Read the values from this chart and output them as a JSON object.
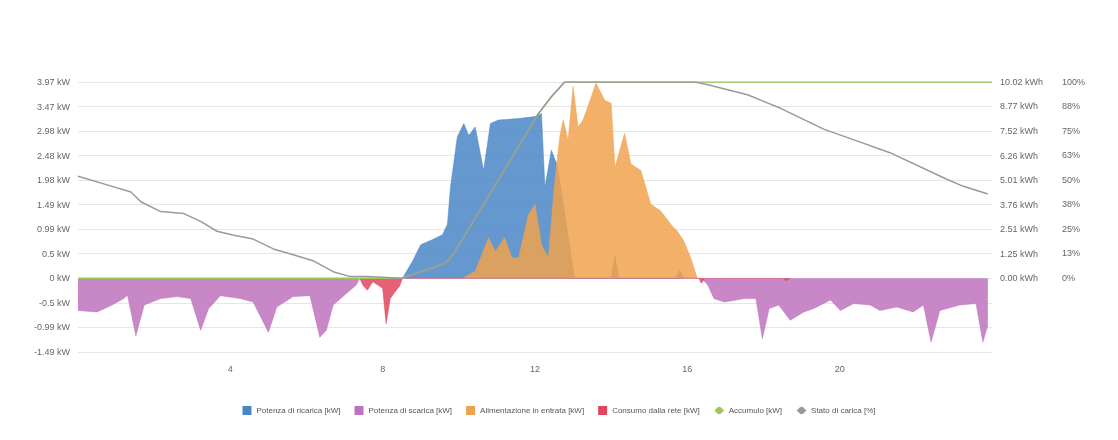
{
  "chart_data": {
    "type": "area",
    "xlim": [
      0,
      24
    ],
    "xticks": [
      4,
      8,
      12,
      16,
      20
    ],
    "ylim": [
      -1.49,
      3.97
    ],
    "yticks": [
      {
        "value": 3.97,
        "label": "3.97 kW"
      },
      {
        "value": 3.47,
        "label": "3.47 kW"
      },
      {
        "value": 2.98,
        "label": "2.98 kW"
      },
      {
        "value": 2.48,
        "label": "2.48 kW"
      },
      {
        "value": 1.98,
        "label": "1.98 kW"
      },
      {
        "value": 1.49,
        "label": "1.49 kW"
      },
      {
        "value": 0.99,
        "label": "0.99 kW"
      },
      {
        "value": 0.5,
        "label": "0.5 kW"
      },
      {
        "value": 0,
        "label": "0 kW"
      },
      {
        "value": -0.5,
        "label": "-0.5 kW"
      },
      {
        "value": -0.99,
        "label": "-0.99 kW"
      },
      {
        "value": -1.49,
        "label": "-1.49 kW"
      }
    ],
    "y2lim": [
      -3.76,
      10.02
    ],
    "y2ticks": [
      {
        "value": 10.02,
        "label": "10.02 kWh"
      },
      {
        "value": 8.77,
        "label": "8.77 kWh"
      },
      {
        "value": 7.52,
        "label": "7.52 kWh"
      },
      {
        "value": 6.26,
        "label": "6.26 kWh"
      },
      {
        "value": 5.01,
        "label": "5.01 kWh"
      },
      {
        "value": 3.76,
        "label": "3.76 kWh"
      },
      {
        "value": 2.51,
        "label": "2.51 kWh"
      },
      {
        "value": 1.25,
        "label": "1.25 kWh"
      },
      {
        "value": 0,
        "label": "0.00 kWh"
      }
    ],
    "y3lim": [
      -37.5,
      100
    ],
    "y3ticks": [
      {
        "value": 100,
        "label": "100%"
      },
      {
        "value": 88,
        "label": "88%"
      },
      {
        "value": 75,
        "label": "75%"
      },
      {
        "value": 63,
        "label": "63%"
      },
      {
        "value": 50,
        "label": "50%"
      },
      {
        "value": 38,
        "label": "38%"
      },
      {
        "value": 25,
        "label": "25%"
      },
      {
        "value": 13,
        "label": "13%"
      },
      {
        "value": 0,
        "label": "0%"
      }
    ],
    "grid": "y",
    "legend": "bottom",
    "series": [
      {
        "name": "Potenza di ricarica [kW]",
        "color": "#4a86c5",
        "x": [
          8.52,
          8.78,
          9.0,
          9.3,
          9.57,
          9.7,
          9.78,
          9.96,
          10.13,
          10.26,
          10.43,
          10.65,
          10.83,
          11.04,
          11.57,
          12.0,
          12.17,
          12.26,
          12.43,
          12.57,
          12.65,
          13.04,
          14.0,
          14.1,
          14.2,
          15.7,
          15.8,
          15.9
        ],
        "values": [
          0,
          0.34,
          0.68,
          0.78,
          0.88,
          1.09,
          1.84,
          2.86,
          3.13,
          2.89,
          3.06,
          2.18,
          3.13,
          3.2,
          3.23,
          3.27,
          3.33,
          1.84,
          2.59,
          2.31,
          1.97,
          0,
          0,
          0.45,
          0,
          0,
          0.17,
          0
        ]
      },
      {
        "name": "Potenza di scarica [kW]",
        "color": "#be72bd",
        "x": [
          0,
          0.5,
          0.87,
          1.2,
          1.3,
          1.52,
          1.74,
          2.17,
          2.6,
          2.96,
          3.22,
          3.43,
          3.74,
          4.26,
          4.6,
          5.0,
          5.22,
          5.65,
          6.09,
          6.35,
          6.52,
          6.7,
          7.04,
          7.3,
          7.4,
          16.37,
          16.54,
          16.7,
          16.97,
          17.5,
          17.8,
          17.97,
          18.15,
          18.4,
          18.7,
          19.06,
          19.32,
          19.76,
          20.02,
          20.37,
          20.8,
          21.06,
          21.5,
          21.93,
          22.2,
          22.4,
          22.63,
          23.15,
          23.58,
          23.76,
          23.89
        ],
        "values": [
          -0.65,
          -0.68,
          -0.55,
          -0.41,
          -0.34,
          -1.16,
          -0.54,
          -0.41,
          -0.37,
          -0.41,
          -1.05,
          -0.61,
          -0.35,
          -0.41,
          -0.48,
          -1.09,
          -0.58,
          -0.37,
          -0.35,
          -1.19,
          -1.05,
          -0.54,
          -0.31,
          -0.14,
          0,
          0,
          -0.14,
          -0.41,
          -0.48,
          -0.41,
          -0.41,
          -1.22,
          -0.61,
          -0.54,
          -0.85,
          -0.68,
          -0.61,
          -0.44,
          -0.65,
          -0.51,
          -0.54,
          -0.65,
          -0.58,
          -0.68,
          -0.54,
          -1.29,
          -0.65,
          -0.54,
          -0.51,
          -1.29,
          -0.95
        ]
      },
      {
        "name": "Alimentazione in entrata [kW]",
        "color": "#f0a24e",
        "x": [
          10.09,
          10.43,
          10.78,
          10.96,
          11.2,
          11.4,
          11.57,
          11.83,
          12.0,
          12.17,
          12.35,
          12.52,
          12.65,
          12.74,
          12.87,
          13.0,
          13.13,
          13.26,
          13.48,
          13.6,
          13.83,
          14.0,
          14.1,
          14.35,
          14.52,
          14.78,
          15.04,
          15.3,
          15.57,
          15.74,
          15.91,
          16.09,
          16.26
        ],
        "values": [
          0,
          0.14,
          0.82,
          0.54,
          0.82,
          0.41,
          0.41,
          1.29,
          1.5,
          0.68,
          0.41,
          1.97,
          2.86,
          3.2,
          2.79,
          3.88,
          3.06,
          3.2,
          3.67,
          3.95,
          3.6,
          3.54,
          2.24,
          2.93,
          2.31,
          2.18,
          1.5,
          1.36,
          1.09,
          0.95,
          0.75,
          0.41,
          0
        ]
      },
      {
        "name": "Consumo dalla rete [kW]",
        "color": "#e0465e",
        "x": [
          7.4,
          7.48,
          7.6,
          7.74,
          8.0,
          8.09,
          8.2,
          8.3,
          8.45,
          8.52,
          16.3,
          16.37,
          16.45,
          18.5,
          18.6,
          18.7
        ],
        "values": [
          0,
          -0.14,
          -0.24,
          -0.07,
          -0.2,
          -0.92,
          -0.41,
          -0.3,
          -0.15,
          0,
          0,
          -0.1,
          0,
          0,
          -0.05,
          0
        ]
      },
      {
        "name": "Accumulo [kW]",
        "type": "line",
        "axis": "y2",
        "color": "#9cc75a",
        "x": [
          0,
          8.5,
          9.65,
          9.9,
          12.09,
          12.43,
          12.78,
          24
        ],
        "values": [
          0,
          0,
          0.77,
          1.37,
          8.4,
          9.27,
          10.02,
          10.02
        ]
      },
      {
        "name": "Stato di carica [%]",
        "type": "line",
        "axis": "y3",
        "color": "#9a9a9a",
        "x": [
          0,
          0.7,
          1.39,
          1.65,
          2.17,
          2.78,
          3.22,
          3.65,
          4.09,
          4.6,
          5.13,
          5.65,
          6.17,
          6.7,
          7.13,
          7.57,
          8.5,
          9.65,
          9.9,
          12.09,
          12.43,
          12.78,
          16.2,
          16.54,
          17.58,
          18.45,
          19.58,
          20.45,
          21.32,
          22.8,
          23.23,
          23.89
        ],
        "values": [
          52,
          48,
          44,
          39,
          34,
          33,
          29,
          24,
          22,
          20,
          15,
          12,
          9,
          3.4,
          1,
          1,
          0,
          7.7,
          13.7,
          84,
          92.5,
          100,
          100,
          98.6,
          93.5,
          86.6,
          76,
          70,
          64,
          50.6,
          47,
          43
        ]
      }
    ]
  }
}
